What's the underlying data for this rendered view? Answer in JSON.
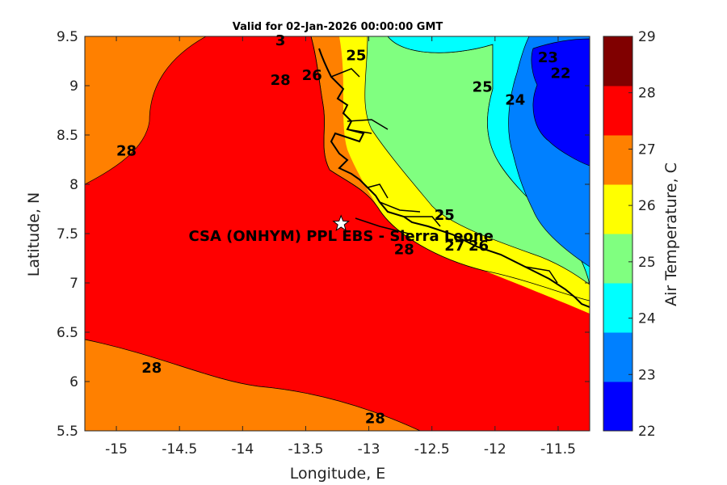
{
  "title": "Valid for 02-Jan-2026 00:00:00 GMT",
  "map": {
    "xlabel": "Longitude, E",
    "ylabel": "Latitude, N",
    "xlim": [
      -15.25,
      -11.25
    ],
    "ylim": [
      5.5,
      9.5
    ],
    "xticks": [
      {
        "value": -15,
        "label": "-15"
      },
      {
        "value": -14.5,
        "label": "-14.5"
      },
      {
        "value": -14,
        "label": "-14"
      },
      {
        "value": -13.5,
        "label": "-13.5"
      },
      {
        "value": -13,
        "label": "-13"
      },
      {
        "value": -12.5,
        "label": "-12.5"
      },
      {
        "value": -12,
        "label": "-12"
      },
      {
        "value": -11.5,
        "label": "-11.5"
      }
    ],
    "yticks": [
      {
        "value": 5.5,
        "label": "5.5"
      },
      {
        "value": 6,
        "label": "6"
      },
      {
        "value": 6.5,
        "label": "6.5"
      },
      {
        "value": 7,
        "label": "7"
      },
      {
        "value": 7.5,
        "label": "7.5"
      },
      {
        "value": 8,
        "label": "8"
      },
      {
        "value": 8.5,
        "label": "8.5"
      },
      {
        "value": 9,
        "label": "9"
      },
      {
        "value": 9.5,
        "label": "9.5"
      }
    ],
    "site": {
      "label": "CSA (ONHYM) PPL EBS  - Sierra Leone",
      "lon": -13.22,
      "lat": 7.6
    },
    "contour_labels": [
      {
        "text": "28",
        "lon": -14.92,
        "lat": 8.33
      },
      {
        "text": "28",
        "lon": -13.7,
        "lat": 9.05
      },
      {
        "text": "28",
        "lon": -14.72,
        "lat": 6.13
      },
      {
        "text": "28",
        "lon": -12.72,
        "lat": 7.33
      },
      {
        "text": "28",
        "lon": -12.95,
        "lat": 5.62
      },
      {
        "text": "3",
        "lon": -13.7,
        "lat": 9.45
      },
      {
        "text": "26",
        "lon": -13.45,
        "lat": 9.1
      },
      {
        "text": "25",
        "lon": -13.1,
        "lat": 9.3
      },
      {
        "text": "25",
        "lon": -12.1,
        "lat": 8.98
      },
      {
        "text": "25",
        "lon": -12.4,
        "lat": 7.68
      },
      {
        "text": "24",
        "lon": -11.84,
        "lat": 8.85
      },
      {
        "text": "23",
        "lon": -11.58,
        "lat": 9.28
      },
      {
        "text": "22",
        "lon": -11.48,
        "lat": 9.12
      },
      {
        "text": "27",
        "lon": -12.32,
        "lat": 7.37
      },
      {
        "text": "26",
        "lon": -12.13,
        "lat": 7.37
      }
    ]
  },
  "colorbar": {
    "label": "Air Temperature, C",
    "min": 22,
    "max": 29,
    "ticks": [
      "22",
      "23",
      "24",
      "25",
      "26",
      "27",
      "28",
      "29"
    ],
    "colors": [
      "#0000ff",
      "#0080ff",
      "#00ffff",
      "#80ff80",
      "#ffff00",
      "#ff8000",
      "#ff0000",
      "#800000"
    ]
  },
  "colors": {
    "t27": "#ff8000",
    "t28": "#ff0000",
    "t26": "#ffff00",
    "t25": "#80ff80",
    "t24": "#00ffff",
    "t23": "#0080ff",
    "t22": "#0000ff"
  }
}
